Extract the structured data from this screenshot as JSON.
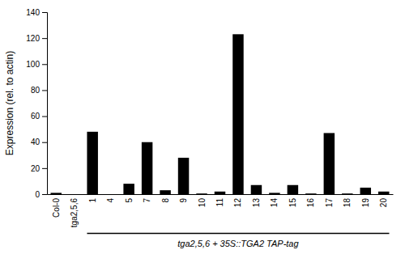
{
  "chart_data": {
    "type": "bar",
    "categories": [
      "Col-0",
      "tga2,5,6",
      "1",
      "4",
      "5",
      "7",
      "8",
      "9",
      "10",
      "11",
      "12",
      "13",
      "14",
      "15",
      "16",
      "17",
      "18",
      "19",
      "20"
    ],
    "values": [
      1,
      0,
      48,
      0,
      8,
      40,
      3,
      28,
      0.5,
      2,
      123,
      7,
      1,
      7,
      0.5,
      47,
      0.5,
      5,
      2
    ],
    "color": "#000000",
    "ylabel": "Expression (rel. to actin)",
    "ylim": [
      0,
      140
    ],
    "yticks": [
      0,
      20,
      40,
      60,
      80,
      100,
      120,
      140
    ],
    "annotations": [
      {
        "text": "tga2,5,6 + 35S::TGA2 TAP-tag",
        "from": "1",
        "to": "20"
      }
    ]
  }
}
